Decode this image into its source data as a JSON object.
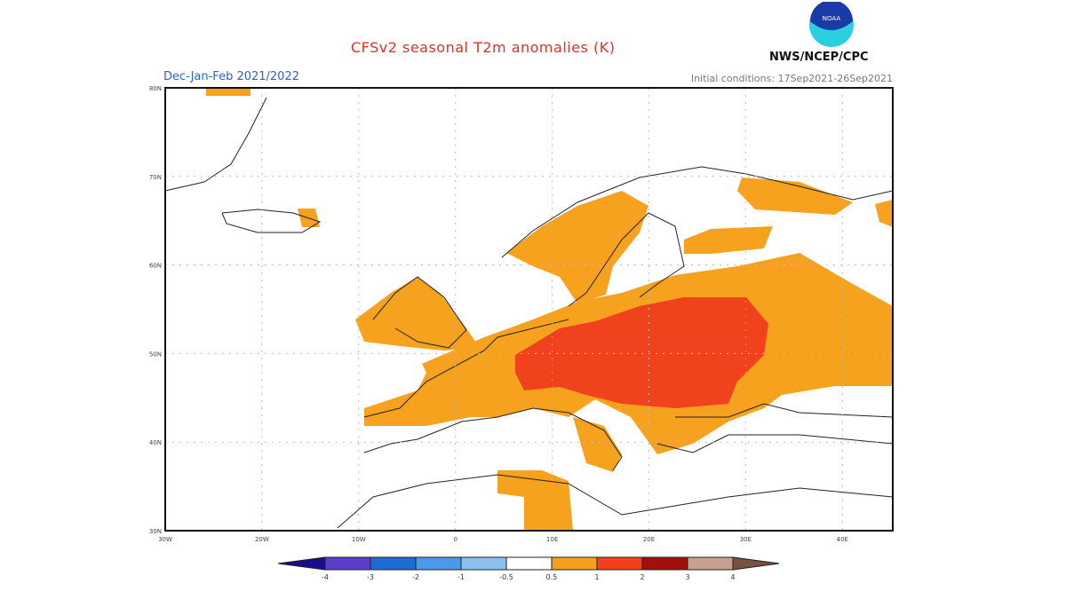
{
  "header": {
    "title": "CFSv2 seasonal T2m anomalies (K)",
    "season": "Dec-Jan-Feb 2021/2022",
    "initial_conditions": "Initial conditions: 17Sep2021-26Sep2021",
    "agency": "NWS/NCEP/CPC",
    "logo_text": "NOAA"
  },
  "map": {
    "lat_labels": [
      "80N",
      "70N",
      "60N",
      "50N",
      "40N",
      "30N"
    ],
    "lon_labels": [
      "30W",
      "20W",
      "10W",
      "0",
      "10E",
      "20E",
      "30E",
      "40E"
    ],
    "region": "Europe",
    "anomaly_areas": {
      "0.5 to 1 K": "most of Europe, Scandinavia, UK, Iberia, western Russia, parts of North Africa",
      "1 to 2 K": "central and eastern Europe"
    }
  },
  "colorbar": {
    "labels": [
      "-4",
      "-3",
      "-2",
      "-1",
      "-0.5",
      "0.5",
      "1",
      "2",
      "3",
      "4"
    ],
    "colors": [
      "#1a0a8c",
      "#5b3fc8",
      "#1f6cd0",
      "#4a9ae8",
      "#8cc0f0",
      "#ffffff",
      "#f5a020",
      "#f0401c",
      "#a0100c",
      "#c8a090",
      "#7a5040"
    ]
  }
}
